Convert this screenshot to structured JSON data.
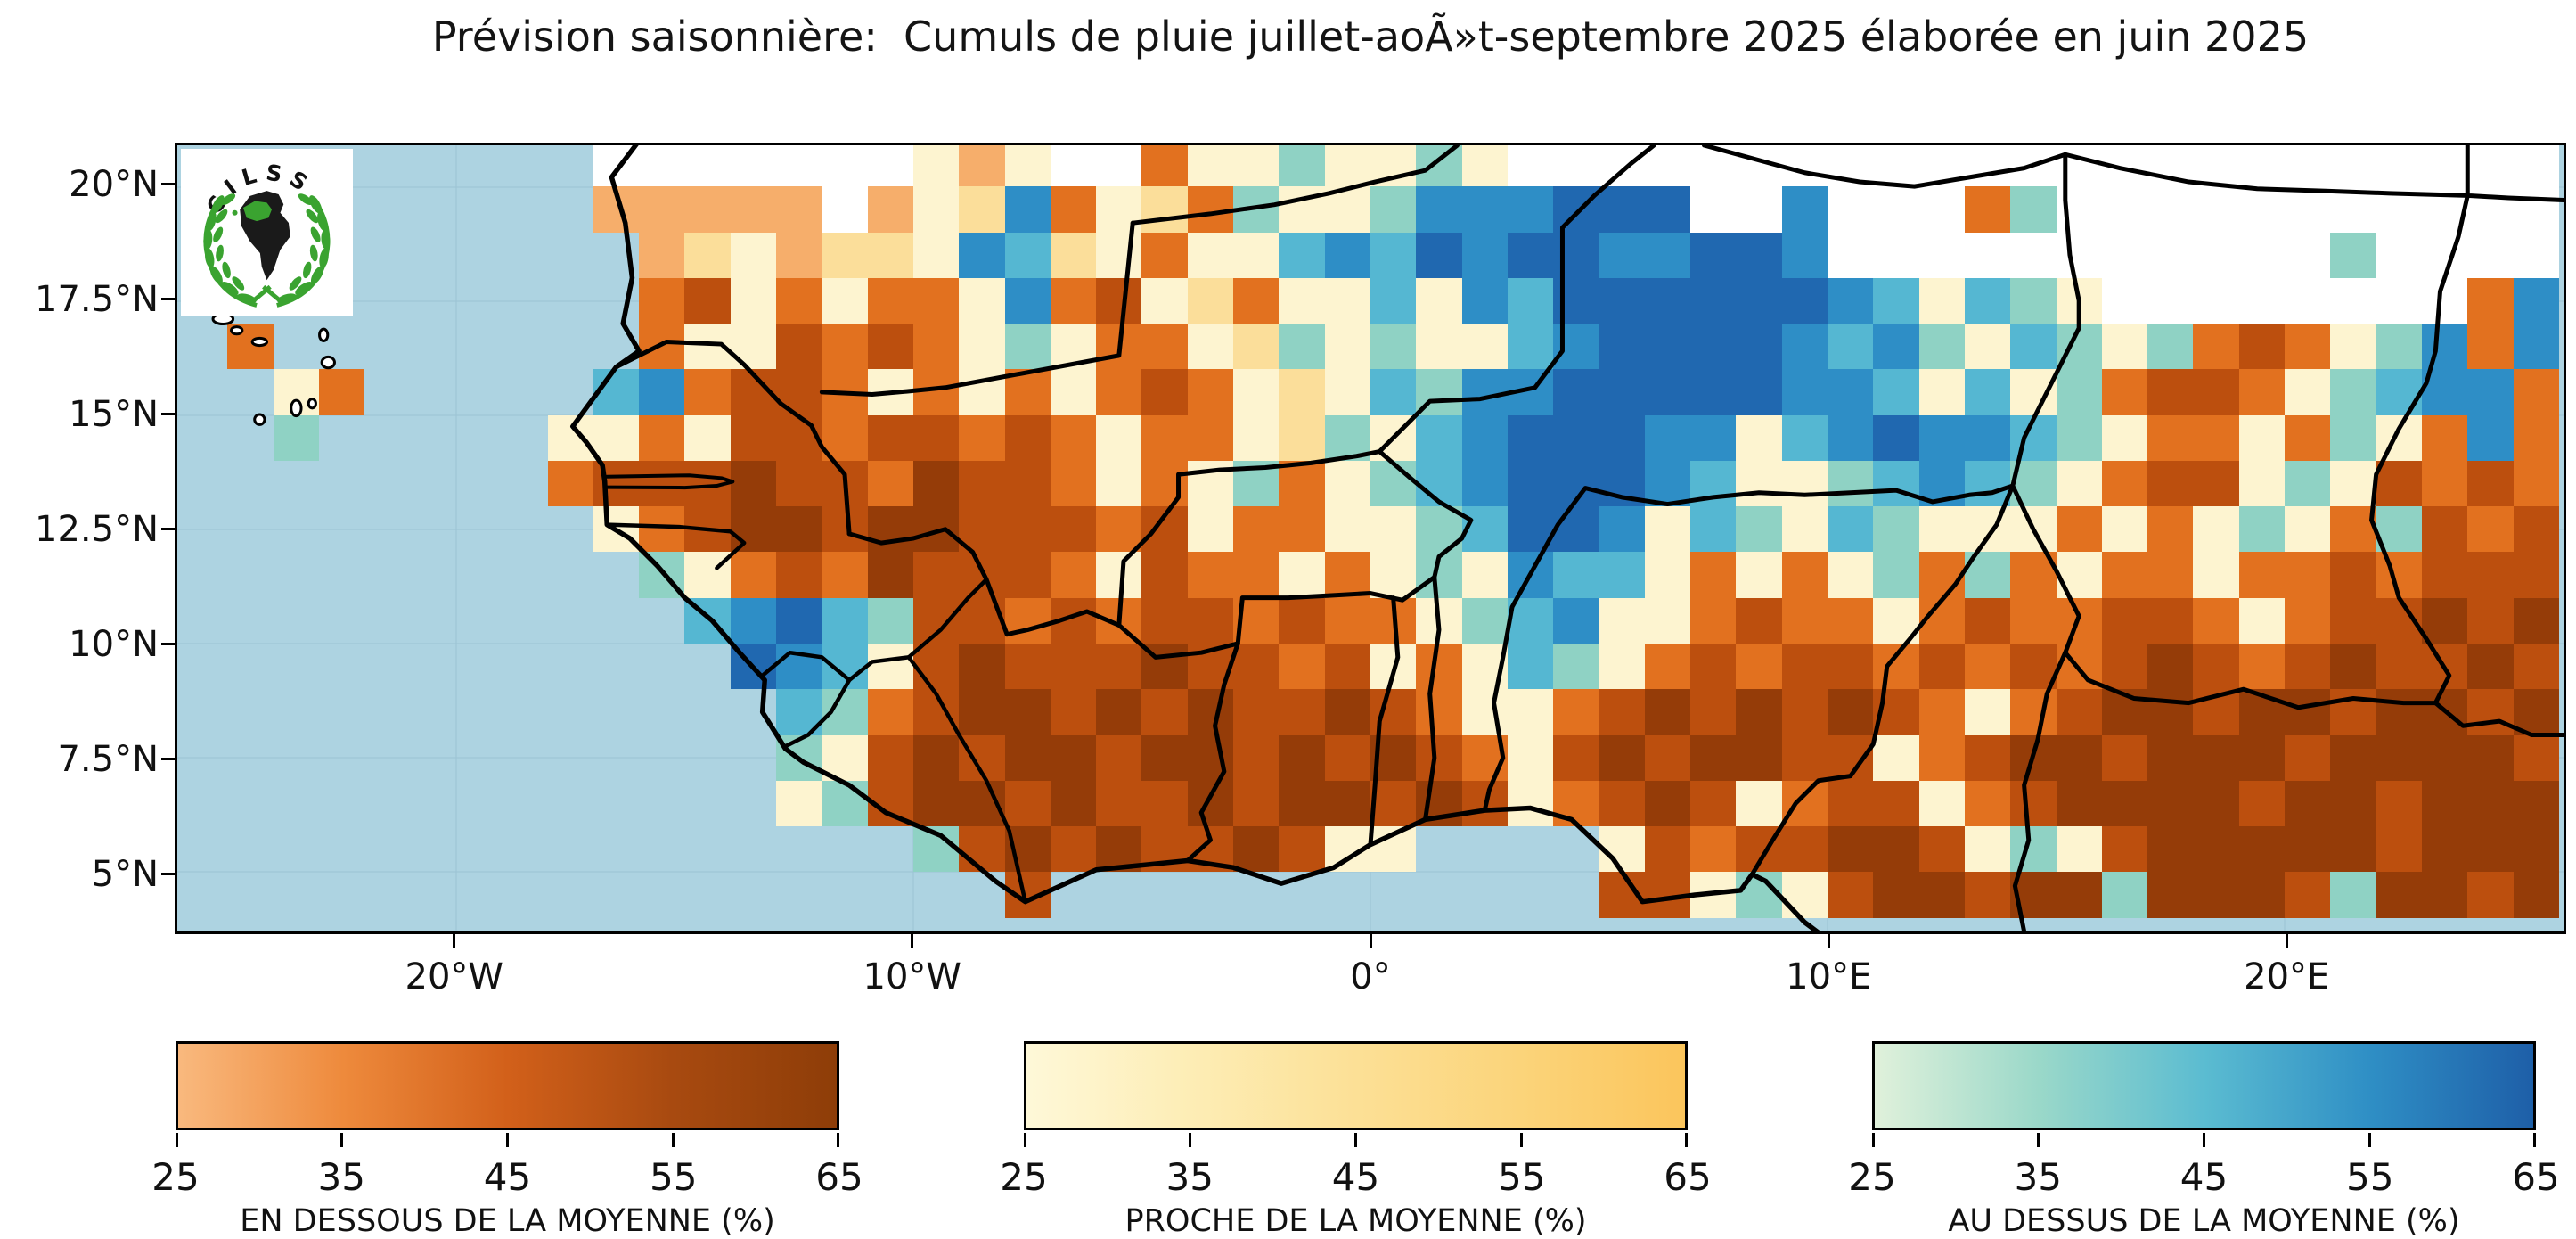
{
  "title": "Prévision saisonnière:  Cumuls de pluie juillet-aoÃ»t-septembre 2025 élaborée en juin 2025",
  "map": {
    "logo_text": "CILSS",
    "y_ticks": [
      "20°N",
      "17.5°N",
      "15°N",
      "12.5°N",
      "10°N",
      "7.5°N",
      "5°N"
    ],
    "x_ticks": [
      "20°W",
      "10°W",
      "0°",
      "10°E",
      "20°E"
    ],
    "ocean_color": "#ADD3E1",
    "gridline_color": "#9CC4D6",
    "border_color": "#000000",
    "nodata_color": "#FFFFFF",
    "palette": {
      "a": "#F6AE6B",
      "b": "#E2711F",
      "c": "#BC4F0E",
      "d": "#953C08",
      "e": "#FDF4D0",
      "f": "#FBDE9A",
      "g": "#F8C763",
      "h": "#DCEFD8",
      "i": "#8FD2C4",
      "j": "#55B7D2",
      "k": "#2E8EC6",
      "l": "#2068B0",
      "W": "#FFFFFF"
    },
    "grid_rows": [
      ".........WWWWWWWeaeWWbeeieeieWWWWWWWWWWWWWWWWWWWWWWW",
      ".........aaaaaWaefkbefbieeikkklllWWkWWWbiWWWWWWWWWWW",
      "..........afeaffekjfebeejkjlkllkkllkWWWWWWWWWWWiWWWW",
      "..........bcebebbekbcefbeejekjllllllkjejieWWWWWWWWbk",
      ".b........beecbcbeiebbefieieejkllllkjkiejieibcbeikbk",
      "..eb.....jkbccbebebebcbefejikklllllkkjejeibccbeijkkb",
      "..i.....eebeccbccbcbebbefiejklllkkejklkkjiebbebiebkb",
      "........bcccdccbdccbebeibeijklllkjeeijkjiebcceiecbcb",
      ".........ebcddcddcccbcebbeeijllkejiejieeebebeiebicbc",
      "..........iebcbdcccbecbbebeiekjjebebeibibebbebbcbccc",
      "...........jkljiccbcbccbcbbeijkeebcbbebcbbccbebccdcd",
      "............lkjecdcccdccbcebejiebcbccbcbcbcdcbcdccdc",
      ".............jibcddcdcdccdcbeebcdcdcdcbebcddcddcddcd",
      ".............iecdcddcddcdcdcbecdcddccebcddcdddcddddc",
      ".............eicddcdccdcddcdcebcdcebccebcddddcddcddd",
      "................icdcdccdcee....ecbccddceiecdddddcddd",
      "..................c............cceiecddcddidddciddcd"
    ]
  },
  "colorbars": [
    {
      "label": "EN DESSOUS DE LA MOYENNE (%)",
      "ticks": [
        "25",
        "35",
        "45",
        "55",
        "65"
      ],
      "stops": [
        "#F9B97E",
        "#EE8A3C",
        "#D2601A",
        "#A84A10",
        "#8E3D08"
      ]
    },
    {
      "label": "PROCHE DE LA MOYENNE (%)",
      "ticks": [
        "25",
        "35",
        "45",
        "55",
        "65"
      ],
      "stops": [
        "#FEF8D8",
        "#FDEDB5",
        "#FCE096",
        "#FBD47A",
        "#FBC55C"
      ]
    },
    {
      "label": "AU DESSUS DE LA MOYENNE (%)",
      "ticks": [
        "25",
        "35",
        "45",
        "55",
        "65"
      ],
      "stops": [
        "#E0F1DB",
        "#9AD8C9",
        "#5BBCD1",
        "#2F8FC5",
        "#1E5FA8"
      ]
    }
  ]
}
